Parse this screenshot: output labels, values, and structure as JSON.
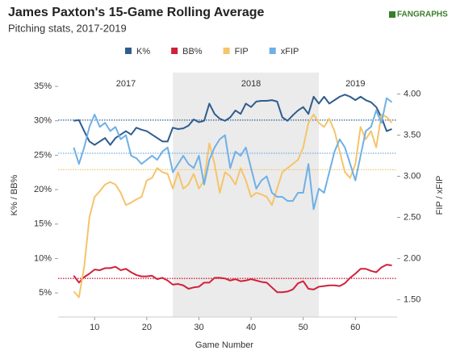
{
  "chart_data": {
    "type": "line",
    "title": "James Paxton's 15-Game Rolling Average",
    "subtitle": "Pitching stats, 2017-2019",
    "logo": "FANGRAPHS",
    "x_label": "Game Number",
    "y_label": "K% / BB%",
    "y2_label": "FIP / xFIP",
    "x": [
      6,
      7,
      8,
      9,
      10,
      11,
      12,
      13,
      14,
      15,
      16,
      17,
      18,
      19,
      20,
      21,
      22,
      23,
      24,
      25,
      26,
      27,
      28,
      29,
      30,
      31,
      32,
      33,
      34,
      35,
      36,
      37,
      38,
      39,
      40,
      41,
      42,
      43,
      44,
      45,
      46,
      47,
      48,
      49,
      50,
      51,
      52,
      53,
      54,
      55,
      56,
      57,
      58,
      59,
      60,
      61,
      62,
      63,
      64,
      65,
      66,
      67
    ],
    "series": [
      {
        "name": "K%",
        "color": "#2e5d8e",
        "axis": "y",
        "reference": 30.1,
        "values": [
          30,
          30.1,
          28.5,
          27,
          26.5,
          27,
          27.5,
          26.5,
          27.5,
          28,
          28.5,
          28,
          29,
          28.7,
          28.5,
          28,
          27.5,
          27,
          27,
          29,
          28.8,
          28.9,
          29.3,
          30.2,
          29.8,
          30,
          32.5,
          31,
          30.3,
          30,
          30.5,
          31.5,
          31,
          32.5,
          32,
          32.8,
          32.9,
          32.9,
          33,
          32.8,
          30.5,
          30,
          30.8,
          31.5,
          32,
          31,
          33.5,
          32.5,
          33.5,
          32.5,
          33,
          33.5,
          33.8,
          33.5,
          33,
          33.5,
          33,
          32.7,
          32,
          30.5,
          28.5,
          28.8
        ]
      },
      {
        "name": "BB%",
        "color": "#d0213b",
        "axis": "y",
        "reference": 7.1,
        "values": [
          7.5,
          6.5,
          7.3,
          7.8,
          8.4,
          8.3,
          8.6,
          8.6,
          8.8,
          8.3,
          8.5,
          8,
          7.6,
          7.4,
          7.4,
          7.5,
          7,
          7.2,
          6.8,
          6.2,
          6.3,
          6.1,
          5.6,
          5.8,
          5.9,
          6.5,
          6.5,
          7.2,
          7.2,
          7.1,
          6.8,
          7,
          6.7,
          6.8,
          7,
          6.8,
          6.6,
          6.5,
          5.8,
          5.1,
          5.1,
          5.2,
          5.5,
          6.4,
          6.7,
          5.6,
          5.5,
          5.9,
          6,
          6.1,
          6.1,
          6,
          6.4,
          7.2,
          7.8,
          8.5,
          8.5,
          8.2,
          8,
          8.7,
          9.1,
          9
        ]
      },
      {
        "name": "FIP",
        "color": "#f5c46b",
        "axis": "y2",
        "reference": 3.08,
        "values": [
          1.6,
          1.53,
          1.9,
          2.5,
          2.75,
          2.82,
          2.9,
          2.93,
          2.9,
          2.8,
          2.65,
          2.68,
          2.72,
          2.75,
          2.95,
          2.98,
          3.1,
          3.05,
          3.03,
          2.85,
          3.05,
          2.85,
          2.9,
          3.03,
          2.85,
          2.95,
          3.4,
          3.15,
          2.8,
          3.05,
          3,
          2.9,
          3.1,
          2.95,
          2.75,
          2.8,
          2.78,
          2.75,
          2.65,
          2.85,
          3.05,
          3.1,
          3.15,
          3.2,
          3.35,
          3.65,
          3.75,
          3.65,
          3.6,
          3.7,
          3.55,
          3.3,
          3.05,
          2.98,
          3.15,
          3.6,
          3.45,
          3.55,
          3.35,
          3.75,
          3.72,
          3.65
        ]
      },
      {
        "name": "xFIP",
        "color": "#6fb0e6",
        "axis": "y2",
        "reference": 3.28,
        "values": [
          3.35,
          3.15,
          3.35,
          3.6,
          3.75,
          3.6,
          3.65,
          3.55,
          3.6,
          3.45,
          3.5,
          3.25,
          3.22,
          3.15,
          3.2,
          3.25,
          3.2,
          3.3,
          3.35,
          3.05,
          3.15,
          3.25,
          3.15,
          3.1,
          3.25,
          2.9,
          3.2,
          3.35,
          3.45,
          3.5,
          3.1,
          3.3,
          3.25,
          3.35,
          3.1,
          2.85,
          2.95,
          3,
          2.8,
          2.75,
          2.75,
          2.7,
          2.7,
          2.8,
          2.8,
          3.15,
          2.6,
          2.85,
          2.8,
          3.05,
          3.3,
          3.45,
          3.35,
          3.15,
          2.95,
          3.25,
          3.55,
          3.6,
          3.8,
          3.65,
          3.95,
          3.9
        ]
      }
    ],
    "shaded_range": [
      25,
      53
    ],
    "annotations": [
      {
        "text": "2017",
        "x": 16
      },
      {
        "text": "2018",
        "x": 40
      },
      {
        "text": "2019",
        "x": 60
      }
    ],
    "xlim": [
      3,
      68
    ],
    "xticks": [
      10,
      20,
      30,
      40,
      50,
      60
    ],
    "ylim": [
      1.5,
      37
    ],
    "yticks": [
      {
        "value": 5,
        "label": "5%"
      },
      {
        "value": 10,
        "label": "10%"
      },
      {
        "value": 15,
        "label": "15%"
      },
      {
        "value": 20,
        "label": "20%"
      },
      {
        "value": 25,
        "label": "25%"
      },
      {
        "value": 30,
        "label": "30%"
      },
      {
        "value": 35,
        "label": "35%"
      }
    ],
    "y2lim": [
      1.29,
      4.26
    ],
    "y2ticks": [
      {
        "value": 1.5,
        "label": "1.50"
      },
      {
        "value": 2,
        "label": "2.00"
      },
      {
        "value": 2.5,
        "label": "2.50"
      },
      {
        "value": 3,
        "label": "3.00"
      },
      {
        "value": 3.5,
        "label": "3.50"
      },
      {
        "value": 4,
        "label": "4.00"
      }
    ],
    "legend": "top"
  }
}
